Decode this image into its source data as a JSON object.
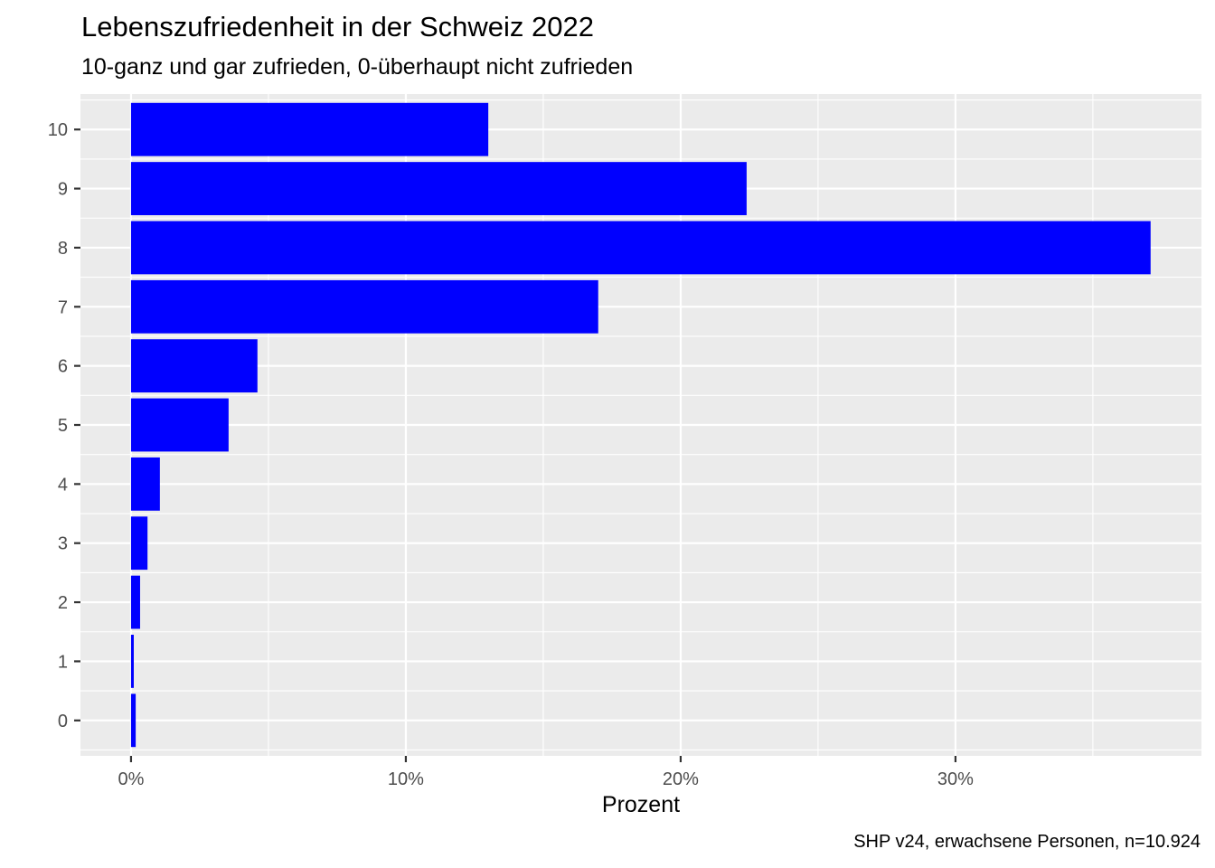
{
  "chart_data": {
    "type": "bar",
    "orientation": "horizontal",
    "title": "Lebenszufriedenheit in der Schweiz 2022",
    "subtitle": "10-ganz und gar zufrieden, 0-überhaupt nicht zufrieden",
    "caption": "SHP v24, erwachsene Personen, n=10.924",
    "xlabel": "Prozent",
    "ylabel": "",
    "categories": [
      "10",
      "9",
      "8",
      "7",
      "6",
      "5",
      "4",
      "3",
      "2",
      "1",
      "0"
    ],
    "values": [
      13.0,
      22.4,
      37.1,
      17.0,
      4.6,
      3.55,
      1.05,
      0.6,
      0.33,
      0.1,
      0.17
    ],
    "value_unit": "percent",
    "xlim": [
      -1.84,
      38.95
    ],
    "x_ticks": [
      0,
      10,
      20,
      30
    ],
    "x_tick_labels": [
      "0%",
      "10%",
      "20%",
      "30%"
    ],
    "grid": true,
    "legend": "none",
    "colors": {
      "bar": "#0000ff",
      "panel": "#ebebeb",
      "grid": "#ffffff"
    }
  }
}
